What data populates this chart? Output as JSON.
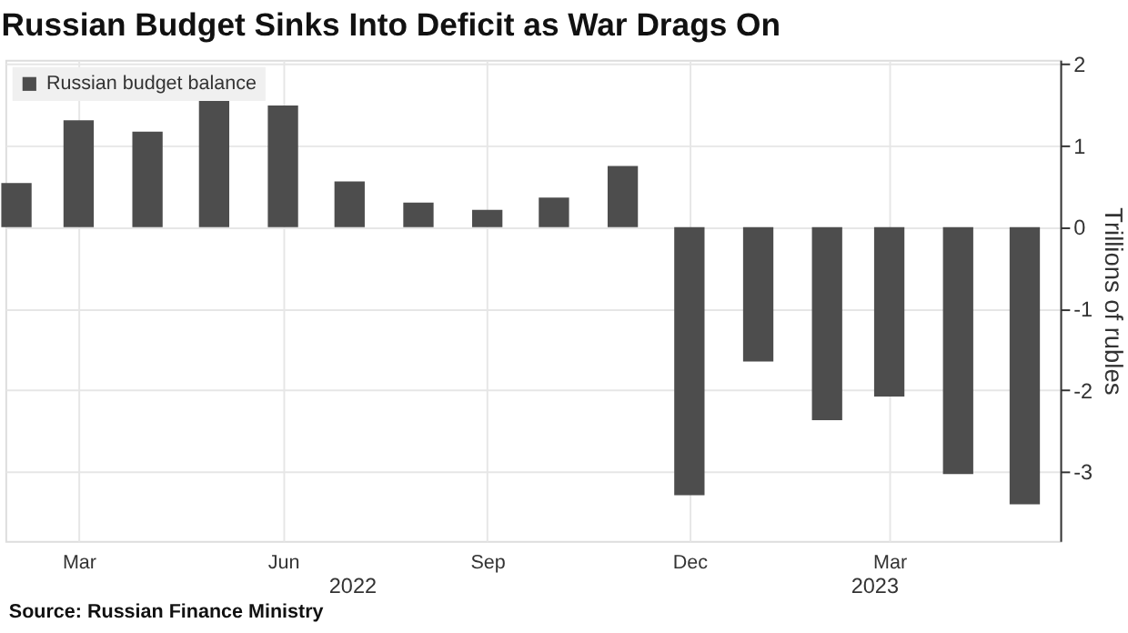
{
  "chart_data": {
    "type": "bar",
    "title": "Russian Budget Sinks Into Deficit as War Drags On",
    "x": [
      "2022-02",
      "2022-03",
      "2022-04",
      "2022-05",
      "2022-06",
      "2022-07",
      "2022-08",
      "2022-09",
      "2022-10",
      "2022-11",
      "2022-12",
      "2023-01",
      "2023-02",
      "2023-03",
      "2023-04",
      "2023-05"
    ],
    "series": [
      {
        "name": "Russian budget balance",
        "color": "#4d4d4d",
        "values": [
          0.54,
          1.31,
          1.17,
          1.6,
          1.49,
          0.56,
          0.3,
          0.21,
          0.36,
          0.75,
          -3.29,
          -1.65,
          -2.37,
          -2.08,
          -3.03,
          -3.4
        ]
      }
    ],
    "ylabel": "Trillions of rubles",
    "ylim": [
      -3.85,
      2.05
    ],
    "yticks": [
      -3,
      -2,
      -1,
      0,
      1,
      2
    ],
    "xlim": [
      "2022-01-27",
      "2023-05-17"
    ],
    "xticks": [
      {
        "value": "2022-03",
        "label": "Mar"
      },
      {
        "value": "2022-06",
        "label": "Jun"
      },
      {
        "value": "2022-09",
        "label": "Sep"
      },
      {
        "value": "2022-12",
        "label": "Dec"
      },
      {
        "value": "2023-03",
        "label": "Mar"
      }
    ],
    "annotations": [
      "2022",
      "2023",
      "Source: Russian Finance Ministry"
    ],
    "grid": true,
    "legend": "top left"
  }
}
